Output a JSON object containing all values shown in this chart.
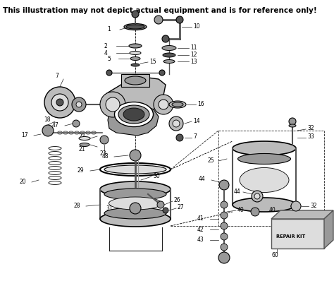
{
  "title": "This illustration may not depict actual equipment and is for reference only!",
  "title_fontsize": 7.5,
  "title_bold": true,
  "bg_color": "#ffffff",
  "fig_width": 4.74,
  "fig_height": 3.98,
  "dpi": 100
}
